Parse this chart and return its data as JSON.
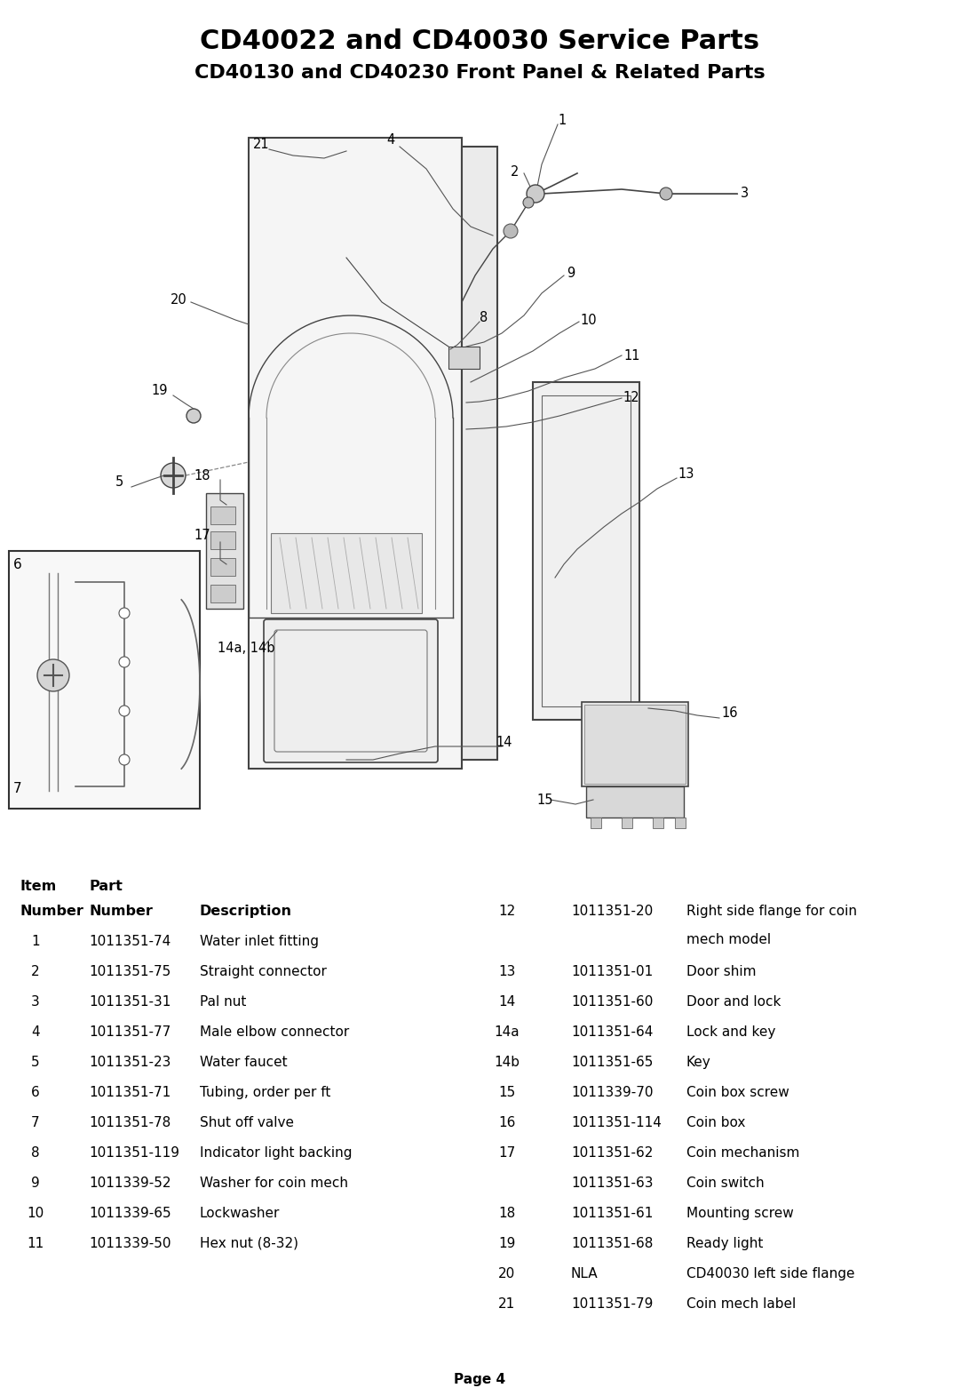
{
  "title1": "CD40022 and CD40030 Service Parts",
  "title2": "CD40130 and CD40230 Front Panel & Related Parts",
  "page_label": "Page 4",
  "background_color": "#ffffff",
  "text_color": "#000000",
  "table_left_rows": [
    [
      "1",
      "1011351-74",
      "Water inlet fitting"
    ],
    [
      "2",
      "1011351-75",
      "Straight connector"
    ],
    [
      "3",
      "1011351-31",
      "Pal nut"
    ],
    [
      "4",
      "1011351-77",
      "Male elbow connector"
    ],
    [
      "5",
      "1011351-23",
      "Water faucet"
    ],
    [
      "6",
      "1011351-71",
      "Tubing, order per ft"
    ],
    [
      "7",
      "1011351-78",
      "Shut off valve"
    ],
    [
      "8",
      "1011351-119",
      "Indicator light backing"
    ],
    [
      "9",
      "1011339-52",
      "Washer for coin mech"
    ],
    [
      "10",
      "1011339-65",
      "Lockwasher"
    ],
    [
      "11",
      "1011339-50",
      "Hex nut (8-32)"
    ]
  ],
  "table_right_rows": [
    [
      "12",
      "1011351-20",
      "Right side flange for coin",
      "mech model"
    ],
    [
      "13",
      "1011351-01",
      "Door shim",
      ""
    ],
    [
      "14",
      "1011351-60",
      "Door and lock",
      ""
    ],
    [
      "14a",
      "1011351-64",
      "Lock and key",
      ""
    ],
    [
      "14b",
      "1011351-65",
      "Key",
      ""
    ],
    [
      "15",
      "1011339-70",
      "Coin box screw",
      ""
    ],
    [
      "16",
      "1011351-114",
      "Coin box",
      ""
    ],
    [
      "17",
      "1011351-62",
      "Coin mechanism",
      ""
    ],
    [
      "",
      "1011351-63",
      "Coin switch",
      ""
    ],
    [
      "18",
      "1011351-61",
      "Mounting screw",
      ""
    ],
    [
      "19",
      "1011351-68",
      "Ready light",
      ""
    ],
    [
      "20",
      "NLA",
      "CD40030 left side flange",
      ""
    ],
    [
      "21",
      "1011351-79",
      "Coin mech label",
      ""
    ]
  ]
}
